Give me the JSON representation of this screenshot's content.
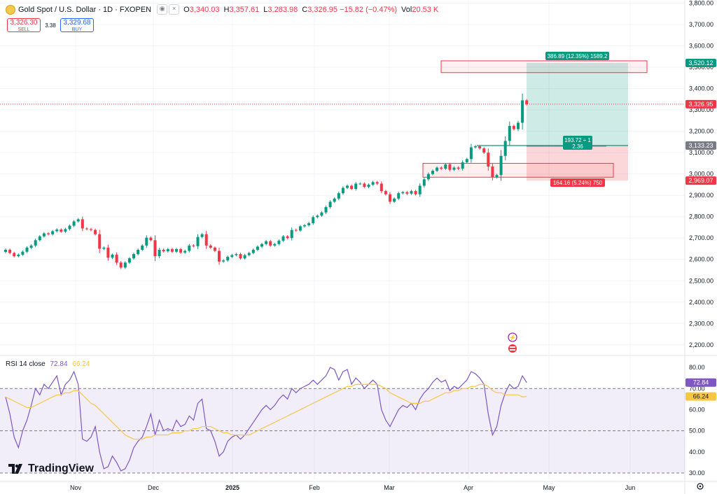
{
  "header": {
    "symbol_title": "Gold Spot / U.S. Dollar · 1D · FXOPEN",
    "ohlc": [
      {
        "k": "O",
        "v": "3,340.03"
      },
      {
        "k": "H",
        "v": "3,357.61"
      },
      {
        "k": "L",
        "v": "3,283.98"
      },
      {
        "k": "C",
        "v": "3,326.95 −15.82 (−0.47%)"
      },
      {
        "k": "Vol",
        "v": "20.53 K"
      }
    ]
  },
  "trade": {
    "sell_price": "3,326.30",
    "sell_label": "SELL",
    "spread": "3.38",
    "buy_price": "3,329.68",
    "buy_label": "BUY"
  },
  "rsi": {
    "title": "RSI 14 close",
    "value": "72.84",
    "ma_value": "66.24"
  },
  "logo": {
    "text": "TradingView"
  },
  "colors": {
    "up": "#089981",
    "down": "#f23645",
    "rsi": "#7e57c2",
    "rsi_ma": "#f7c744",
    "target": "#089981",
    "stop": "#f23645"
  },
  "chart_data": {
    "type": "candlestick",
    "symbol": "Gold Spot / U.S. Dollar",
    "timeframe": "1D",
    "y_ticks": [
      "3,800.00",
      "3,700.00",
      "3,600.00",
      "3,500.00",
      "3,400.00",
      "3,300.00",
      "3,200.00",
      "3,100.00",
      "3,000.00",
      "2,900.00",
      "2,800.00",
      "2,700.00",
      "2,600.00",
      "2,500.00",
      "2,400.00",
      "2,300.00",
      "2,200.00"
    ],
    "ylim": [
      2160,
      3815
    ],
    "x_labels": [
      "Nov",
      "Dec",
      "2025",
      "Feb",
      "Mar",
      "Apr",
      "May",
      "Jun"
    ],
    "price_labels": [
      {
        "value": 3520.12,
        "text": "3,520.12",
        "color": "#089981"
      },
      {
        "value": 3326.95,
        "text": "3,326.95",
        "color": "#f23645"
      },
      {
        "value": 3133.23,
        "text": "3,133.23",
        "color": "#787b86"
      },
      {
        "value": 2969.07,
        "text": "2,969.07",
        "color": "#f23645"
      }
    ],
    "closes": [
      2645,
      2630,
      2615,
      2622,
      2636,
      2655,
      2665,
      2690,
      2708,
      2722,
      2718,
      2732,
      2740,
      2730,
      2742,
      2758,
      2778,
      2788,
      2745,
      2742,
      2738,
      2718,
      2650,
      2655,
      2608,
      2622,
      2585,
      2562,
      2585,
      2605,
      2625,
      2645,
      2665,
      2702,
      2690,
      2615,
      2645,
      2638,
      2648,
      2636,
      2648,
      2632,
      2640,
      2665,
      2662,
      2705,
      2718,
      2665,
      2655,
      2640,
      2590,
      2595,
      2612,
      2620,
      2625,
      2605,
      2620,
      2630,
      2645,
      2660,
      2672,
      2685,
      2665,
      2672,
      2688,
      2708,
      2700,
      2738,
      2735,
      2755,
      2760,
      2770,
      2798,
      2805,
      2820,
      2845,
      2870,
      2885,
      2910,
      2935,
      2945,
      2930,
      2955,
      2955,
      2940,
      2950,
      2962,
      2955,
      2920,
      2905,
      2870,
      2885,
      2910,
      2915,
      2908,
      2920,
      2905,
      2945,
      2975,
      3000,
      3015,
      3030,
      3025,
      3045,
      3020,
      3030,
      3025,
      3055,
      3070,
      3125,
      3130,
      3120,
      3100,
      3035,
      2985,
      2995,
      3085,
      3155,
      3225,
      3210,
      3240,
      3345,
      3327
    ],
    "rsi_values": [
      66,
      58,
      47,
      42,
      50,
      55,
      62,
      70,
      67,
      72,
      70,
      73,
      76,
      67,
      72,
      74,
      78,
      72,
      46,
      45,
      47,
      52,
      40,
      32,
      33,
      38,
      35,
      31,
      32,
      36,
      42,
      45,
      47,
      52,
      58,
      48,
      55,
      50,
      51,
      50,
      55,
      52,
      53,
      57,
      55,
      63,
      65,
      51,
      50,
      45,
      38,
      40,
      45,
      47,
      48,
      46,
      48,
      51,
      54,
      57,
      60,
      62,
      60,
      62,
      65,
      67,
      65,
      70,
      68,
      70,
      71,
      72,
      74,
      72,
      74,
      76,
      80,
      79,
      74,
      78,
      79,
      72,
      75,
      73,
      70,
      72,
      74,
      72,
      60,
      55,
      52,
      56,
      60,
      62,
      61,
      63,
      60,
      65,
      68,
      70,
      73,
      75,
      73,
      74,
      69,
      71,
      70,
      72,
      74,
      78,
      77,
      75,
      72,
      58,
      48,
      52,
      62,
      68,
      72,
      70,
      71,
      76,
      72.84
    ],
    "rsi_ma_values": [
      66,
      65,
      64,
      63,
      62,
      61,
      61,
      62,
      63,
      64,
      65,
      66,
      67,
      67,
      68,
      68,
      69,
      69,
      67,
      65,
      63,
      62,
      60,
      58,
      56,
      54,
      52,
      50,
      48,
      47,
      46,
      46,
      46,
      47,
      47,
      48,
      48,
      48,
      48,
      49,
      49,
      49,
      50,
      50,
      51,
      51,
      52,
      52,
      52,
      51,
      50,
      49,
      49,
      48,
      48,
      48,
      48,
      48,
      49,
      50,
      51,
      52,
      53,
      54,
      55,
      56,
      57,
      58,
      59,
      60,
      61,
      62,
      63,
      64,
      65,
      66,
      67,
      68,
      69,
      70,
      71,
      71,
      72,
      72,
      72,
      72,
      72,
      72,
      71,
      70,
      68,
      67,
      66,
      65,
      64,
      63,
      63,
      63,
      64,
      64,
      65,
      66,
      67,
      68,
      68,
      69,
      69,
      70,
      70,
      71,
      71,
      72,
      72,
      71,
      69,
      68,
      68,
      67,
      67,
      67,
      67,
      66,
      66.24
    ],
    "rsi_ticks": [
      "80.00",
      "70.00",
      "60.00",
      "50.00",
      "40.00",
      "30.00"
    ],
    "rsi_ylim": [
      27,
      85
    ],
    "rsi_band": [
      30,
      70
    ],
    "position": {
      "entry": 3133.23,
      "target": 3520.12,
      "stop": 2969.07,
      "target_label": "386.89 (12.35%) 1589.2",
      "entry_label_1": "193.72 ÷ 1",
      "entry_label_2": "2.36",
      "stop_label": "164.16 (5.24%) 750"
    },
    "zones": [
      {
        "low": 3475,
        "high": 3530
      },
      {
        "low": 2985,
        "high": 3050
      }
    ]
  }
}
